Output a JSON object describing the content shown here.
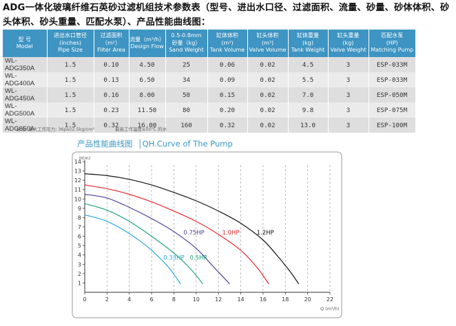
{
  "heading": "ADG一体化玻璃纤维石英砂过滤机组技术参数表（型号、进出水口径、过滤面积、流量、砂量、砂体体积、砂头体积、砂头重量、匹配水泵）、产品性能曲线图：",
  "table": {
    "headers": [
      [
        "型  号",
        "Model"
      ],
      [
        "进出水口管径",
        "(inches)",
        "Pipe Size"
      ],
      [
        "过滤面积（m²）",
        "Filter Area"
      ],
      [
        "流量（m³/h）",
        "Design Flow"
      ],
      [
        "0.5-0.8mm",
        "砂量（kg）",
        "Sand Weight"
      ],
      [
        "缸体体积",
        "(m³)",
        "Tank Volume"
      ],
      [
        "缸头体积",
        "(m³)",
        "Valve Volume"
      ],
      [
        "缸体重量",
        "(kg)",
        "Tank Weight"
      ],
      [
        "缸头重量",
        "(kg)",
        "Valve Weight"
      ],
      [
        "匹配水泵",
        "(HP)",
        "Matching Pump"
      ]
    ],
    "rows": [
      [
        "WL-ADG350A",
        "1.5",
        "0.10",
        "4.50",
        "25",
        "0.06",
        "0.02",
        "4.5",
        "3",
        "ESP-033M"
      ],
      [
        "WL-ADG400A",
        "1.5",
        "0.13",
        "6.50",
        "34",
        "0.09",
        "0.02",
        "5.5",
        "3",
        "ESP-033M"
      ],
      [
        "WL-ADG450A",
        "1.5",
        "0.16",
        "8.00",
        "50",
        "0.15",
        "0.02",
        "7.0",
        "3",
        "ESP-050M"
      ],
      [
        "WL-ADG500A",
        "1.5",
        "0.23",
        "11.50",
        "80",
        "0.20",
        "0.02",
        "9.8",
        "3",
        "ESP-075M"
      ],
      [
        "WL-ADG650A",
        "1.5",
        "0.32",
        "16.00",
        "160",
        "0.32",
        "0.02",
        "13.0",
        "3",
        "ESP-100M"
      ]
    ]
  },
  "notes": {
    "pressure": "标准: 最大工作压力: 36psi/2.5kg/cm²",
    "temperature": "最高工作温度≤50℃ 的水"
  },
  "chart_title": "产品性能曲线图  │QH.Curve of The Pump",
  "chart_data": {
    "type": "line",
    "xlabel": "Q (m³/h)",
    "ylabel": "H(m)",
    "xlim": [
      0,
      22
    ],
    "ylim": [
      0,
      14
    ],
    "xticks": [
      0,
      2,
      4,
      6,
      8,
      10,
      12,
      14,
      16,
      18,
      20,
      22
    ],
    "yticks": [
      1,
      2,
      3,
      4,
      5,
      6,
      7,
      8,
      9,
      10,
      11,
      12,
      13,
      14
    ],
    "grid": "vertical dashed",
    "series": [
      {
        "name": "0.33HP",
        "color": "#27a9e1",
        "label_at": [
          8.0,
          3.5
        ],
        "points": [
          [
            0,
            8.3
          ],
          [
            2,
            7.6
          ],
          [
            4,
            6.3
          ],
          [
            6,
            4.5
          ],
          [
            7.5,
            2.7
          ],
          [
            8.6,
            0.9
          ]
        ]
      },
      {
        "name": "0.5HP",
        "color": "#1ea27e",
        "label_at": [
          10.2,
          3.5
        ],
        "points": [
          [
            0,
            9.5
          ],
          [
            2,
            8.8
          ],
          [
            4,
            7.6
          ],
          [
            6,
            6.0
          ],
          [
            8,
            4.2
          ],
          [
            9.5,
            2.5
          ],
          [
            10.6,
            0.9
          ]
        ]
      },
      {
        "name": "0.75HP",
        "color": "#4a3f98",
        "label_at": [
          9.8,
          6.2
        ],
        "points": [
          [
            0,
            10.5
          ],
          [
            2,
            10.1
          ],
          [
            4,
            9.1
          ],
          [
            6,
            7.9
          ],
          [
            8,
            6.5
          ],
          [
            10,
            4.7
          ],
          [
            11.5,
            2.8
          ],
          [
            13,
            0.9
          ]
        ]
      },
      {
        "name": "1.0HP",
        "color": "#e5282d",
        "label_at": [
          13.1,
          6.2
        ],
        "points": [
          [
            0,
            11.5
          ],
          [
            2,
            11.1
          ],
          [
            4,
            10.5
          ],
          [
            6,
            9.7
          ],
          [
            8,
            8.7
          ],
          [
            10,
            7.6
          ],
          [
            12,
            6.2
          ],
          [
            14,
            4.5
          ],
          [
            15.5,
            2.6
          ],
          [
            16.5,
            0.9
          ]
        ]
      },
      {
        "name": "1.2HP",
        "color": "#111111",
        "label_at": [
          16.2,
          6.2
        ],
        "points": [
          [
            0,
            12.7
          ],
          [
            2,
            12.5
          ],
          [
            4,
            12.1
          ],
          [
            6,
            11.5
          ],
          [
            8,
            10.7
          ],
          [
            10,
            9.8
          ],
          [
            12,
            8.7
          ],
          [
            14,
            7.4
          ],
          [
            16,
            5.6
          ],
          [
            17.5,
            3.6
          ],
          [
            18.5,
            2.1
          ],
          [
            19.2,
            0.9
          ]
        ]
      }
    ]
  }
}
